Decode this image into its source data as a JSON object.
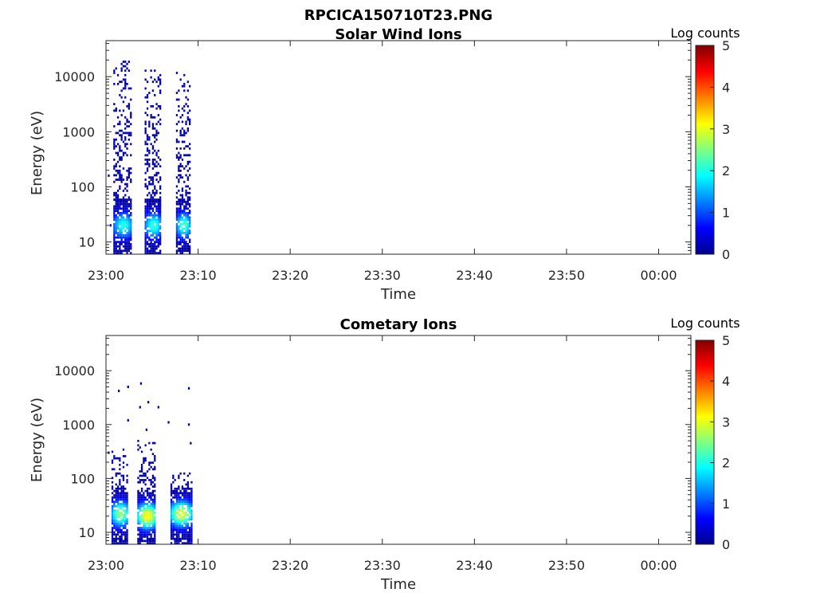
{
  "figure_title": "RPCICA150710T23.PNG",
  "colors": {
    "colormap": [
      "#00008f",
      "#0000ff",
      "#0080ff",
      "#00ffff",
      "#80ff80",
      "#ffff00",
      "#ff8000",
      "#ff0000",
      "#800000"
    ],
    "axes": "#262626",
    "background": "#ffffff"
  },
  "chart_data": [
    {
      "type": "heatmap",
      "title": "Solar Wind Ions",
      "xlabel": "Time",
      "ylabel": "Energy (eV)",
      "x_ticks": [
        "23:00",
        "23:10",
        "23:20",
        "23:30",
        "23:40",
        "23:50",
        "00:00"
      ],
      "x_range_minutes": [
        0,
        63.5
      ],
      "y_ticks": [
        "10",
        "100",
        "1000",
        "10000"
      ],
      "y_scale": "log",
      "ylim": [
        6,
        45000
      ],
      "colorbar": {
        "label": "Log counts",
        "ticks": [
          "0",
          "1",
          "2",
          "3",
          "4",
          "5"
        ],
        "range": [
          0,
          5
        ]
      },
      "bursts": [
        {
          "start_min": 0.8,
          "end_min": 2.8,
          "max_energy_eV": 20000,
          "peak_energy_eV": 20,
          "peak_log_counts": 2.0
        },
        {
          "start_min": 4.2,
          "end_min": 6.0,
          "max_energy_eV": 13000,
          "peak_energy_eV": 20,
          "peak_log_counts": 2.1
        },
        {
          "start_min": 7.6,
          "end_min": 9.1,
          "max_energy_eV": 12000,
          "peak_energy_eV": 20,
          "peak_log_counts": 2.2
        }
      ],
      "isolated_points": [
        {
          "t_min": 0.2,
          "energy_eV": 160,
          "log_counts": 0.1
        },
        {
          "t_min": 0.4,
          "energy_eV": 20,
          "log_counts": 0.2
        }
      ]
    },
    {
      "type": "heatmap",
      "title": "Cometary Ions",
      "xlabel": "Time",
      "ylabel": "Energy (eV)",
      "x_ticks": [
        "23:00",
        "23:10",
        "23:20",
        "23:30",
        "23:40",
        "23:50",
        "00:00"
      ],
      "x_range_minutes": [
        0,
        63.5
      ],
      "y_ticks": [
        "10",
        "100",
        "1000",
        "10000"
      ],
      "y_scale": "log",
      "ylim": [
        6,
        45000
      ],
      "colorbar": {
        "label": "Log counts",
        "ticks": [
          "0",
          "1",
          "2",
          "3",
          "4",
          "5"
        ],
        "range": [
          0,
          5
        ]
      },
      "bursts": [
        {
          "start_min": 0.6,
          "end_min": 2.4,
          "max_energy_eV": 350,
          "peak_energy_eV": 22,
          "peak_log_counts": 2.6
        },
        {
          "start_min": 3.4,
          "end_min": 5.4,
          "max_energy_eV": 500,
          "peak_energy_eV": 20,
          "peak_log_counts": 3.2
        },
        {
          "start_min": 7.0,
          "end_min": 9.2,
          "max_energy_eV": 130,
          "peak_energy_eV": 22,
          "peak_log_counts": 3.0
        }
      ],
      "isolated_points": [
        {
          "t_min": 1.3,
          "energy_eV": 4200,
          "log_counts": 0.1
        },
        {
          "t_min": 2.3,
          "energy_eV": 5000,
          "log_counts": 0.1
        },
        {
          "t_min": 3.7,
          "energy_eV": 5800,
          "log_counts": 0.1
        },
        {
          "t_min": 3.6,
          "energy_eV": 2100,
          "log_counts": 0.1
        },
        {
          "t_min": 4.5,
          "energy_eV": 2600,
          "log_counts": 0.1
        },
        {
          "t_min": 5.6,
          "energy_eV": 2100,
          "log_counts": 0.1
        },
        {
          "t_min": 2.3,
          "energy_eV": 1200,
          "log_counts": 0.1
        },
        {
          "t_min": 6.7,
          "energy_eV": 1100,
          "log_counts": 0.1
        },
        {
          "t_min": 8.9,
          "energy_eV": 1000,
          "log_counts": 0.1
        },
        {
          "t_min": 8.9,
          "energy_eV": 4700,
          "log_counts": 0.1
        },
        {
          "t_min": 4.3,
          "energy_eV": 800,
          "log_counts": 0.1
        },
        {
          "t_min": 9.1,
          "energy_eV": 450,
          "log_counts": 0.2
        },
        {
          "t_min": 0.2,
          "energy_eV": 300,
          "log_counts": 0.1
        }
      ]
    }
  ]
}
